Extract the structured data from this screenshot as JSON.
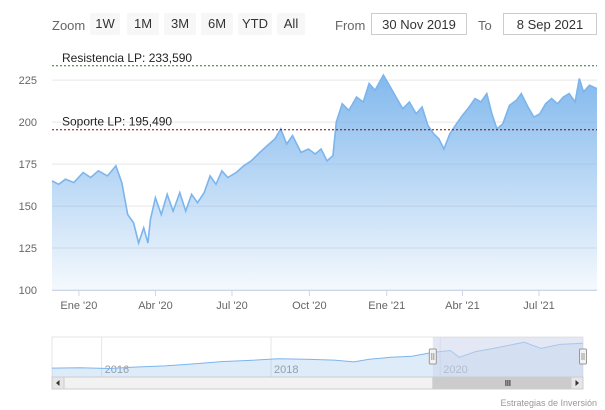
{
  "toolbar": {
    "zoom_label": "Zoom",
    "buttons": [
      "1W",
      "1M",
      "3M",
      "6M",
      "YTD",
      "All"
    ],
    "from_label": "From",
    "from_value": "30 Nov 2019",
    "to_label": "To",
    "to_value": "8 Sep 2021"
  },
  "credit": "Estrategias de Inversión",
  "colors": {
    "line": "#7cb5ec",
    "area_top": "#7cb5ec",
    "resistance": "#1f7a1f",
    "support": "#8b0000",
    "navigator_band": "#ccd6eb"
  },
  "chart_data": {
    "type": "area",
    "title": "",
    "xlabel": "",
    "ylabel": "",
    "ylim": [
      100,
      240
    ],
    "yticks": [
      100,
      125,
      150,
      175,
      200,
      225
    ],
    "xlim": [
      "2019-11-30",
      "2021-09-08"
    ],
    "xticks": [
      {
        "date": "2020-01-01",
        "label": "Ene '20"
      },
      {
        "date": "2020-04-01",
        "label": "Abr '20"
      },
      {
        "date": "2020-07-01",
        "label": "Jul '20"
      },
      {
        "date": "2020-10-01",
        "label": "Oct '20"
      },
      {
        "date": "2021-01-01",
        "label": "Ene '21"
      },
      {
        "date": "2021-04-01",
        "label": "Abr '21"
      },
      {
        "date": "2021-07-01",
        "label": "Jul '21"
      }
    ],
    "grid": true,
    "legend": "none",
    "series": [
      {
        "points": [
          [
            "2019-11-30",
            165
          ],
          [
            "2019-12-08",
            163
          ],
          [
            "2019-12-16",
            166
          ],
          [
            "2019-12-26",
            164
          ],
          [
            "2020-01-06",
            170
          ],
          [
            "2020-01-15",
            167
          ],
          [
            "2020-01-24",
            171
          ],
          [
            "2020-02-04",
            168
          ],
          [
            "2020-02-14",
            174
          ],
          [
            "2020-02-21",
            164
          ],
          [
            "2020-02-28",
            145
          ],
          [
            "2020-03-06",
            140
          ],
          [
            "2020-03-12",
            128
          ],
          [
            "2020-03-18",
            137
          ],
          [
            "2020-03-23",
            128
          ],
          [
            "2020-03-26",
            142
          ],
          [
            "2020-04-01",
            155
          ],
          [
            "2020-04-08",
            145
          ],
          [
            "2020-04-15",
            157
          ],
          [
            "2020-04-22",
            147
          ],
          [
            "2020-04-30",
            158
          ],
          [
            "2020-05-07",
            147
          ],
          [
            "2020-05-14",
            157
          ],
          [
            "2020-05-21",
            152
          ],
          [
            "2020-05-29",
            158
          ],
          [
            "2020-06-05",
            168
          ],
          [
            "2020-06-12",
            163
          ],
          [
            "2020-06-19",
            171
          ],
          [
            "2020-06-26",
            167
          ],
          [
            "2020-07-06",
            170
          ],
          [
            "2020-07-15",
            174
          ],
          [
            "2020-07-24",
            177
          ],
          [
            "2020-08-03",
            182
          ],
          [
            "2020-08-12",
            186
          ],
          [
            "2020-08-21",
            190
          ],
          [
            "2020-08-28",
            196
          ],
          [
            "2020-09-04",
            187
          ],
          [
            "2020-09-11",
            192
          ],
          [
            "2020-09-21",
            182
          ],
          [
            "2020-09-30",
            184
          ],
          [
            "2020-10-08",
            181
          ],
          [
            "2020-10-15",
            184
          ],
          [
            "2020-10-22",
            177
          ],
          [
            "2020-10-29",
            180
          ],
          [
            "2020-11-02",
            200
          ],
          [
            "2020-11-09",
            211
          ],
          [
            "2020-11-17",
            207
          ],
          [
            "2020-11-26",
            215
          ],
          [
            "2020-12-04",
            212
          ],
          [
            "2020-12-11",
            223
          ],
          [
            "2020-12-18",
            219
          ],
          [
            "2020-12-28",
            228
          ],
          [
            "2021-01-04",
            222
          ],
          [
            "2021-01-12",
            215
          ],
          [
            "2021-01-20",
            208
          ],
          [
            "2021-01-28",
            212
          ],
          [
            "2021-02-05",
            205
          ],
          [
            "2021-02-12",
            209
          ],
          [
            "2021-02-19",
            198
          ],
          [
            "2021-02-26",
            193
          ],
          [
            "2021-03-04",
            190
          ],
          [
            "2021-03-10",
            184
          ],
          [
            "2021-03-17",
            193
          ],
          [
            "2021-03-25",
            199
          ],
          [
            "2021-04-01",
            204
          ],
          [
            "2021-04-09",
            209
          ],
          [
            "2021-04-16",
            214
          ],
          [
            "2021-04-23",
            212
          ],
          [
            "2021-04-30",
            217
          ],
          [
            "2021-05-06",
            205
          ],
          [
            "2021-05-12",
            196
          ],
          [
            "2021-05-19",
            199
          ],
          [
            "2021-05-27",
            210
          ],
          [
            "2021-06-04",
            213
          ],
          [
            "2021-06-10",
            217
          ],
          [
            "2021-06-18",
            209
          ],
          [
            "2021-06-25",
            203
          ],
          [
            "2021-07-02",
            205
          ],
          [
            "2021-07-09",
            211
          ],
          [
            "2021-07-16",
            214
          ],
          [
            "2021-07-23",
            211
          ],
          [
            "2021-07-30",
            215
          ],
          [
            "2021-08-06",
            217
          ],
          [
            "2021-08-13",
            212
          ],
          [
            "2021-08-18",
            226
          ],
          [
            "2021-08-23",
            218
          ],
          [
            "2021-08-30",
            222
          ],
          [
            "2021-09-08",
            220
          ]
        ]
      }
    ],
    "annotations": [
      {
        "label": "Resistencia LP: 233,590",
        "value": 233.59,
        "style": "dotted",
        "color": "#1f7a1f"
      },
      {
        "label": "Soporte LP: 195,490",
        "value": 195.49,
        "style": "dotted",
        "color": "#8b0000"
      }
    ]
  },
  "navigator": {
    "xlim": [
      "2015-06-01",
      "2021-09-08"
    ],
    "ylim": [
      0,
      260
    ],
    "selected_range": [
      "2019-11-30",
      "2021-09-08"
    ],
    "year_labels": [
      {
        "date": "2016-01-01",
        "label": "2016"
      },
      {
        "date": "2018-01-01",
        "label": "2018"
      },
      {
        "date": "2020-01-01",
        "label": "2020"
      }
    ],
    "series": [
      [
        "2015-06-01",
        58
      ],
      [
        "2015-10-01",
        60
      ],
      [
        "2016-02-01",
        55
      ],
      [
        "2016-06-01",
        65
      ],
      [
        "2016-10-01",
        72
      ],
      [
        "2017-02-01",
        85
      ],
      [
        "2017-06-01",
        100
      ],
      [
        "2017-10-01",
        108
      ],
      [
        "2018-02-01",
        118
      ],
      [
        "2018-06-01",
        115
      ],
      [
        "2018-10-01",
        110
      ],
      [
        "2018-12-24",
        98
      ],
      [
        "2019-03-01",
        115
      ],
      [
        "2019-06-01",
        128
      ],
      [
        "2019-09-01",
        135
      ],
      [
        "2019-11-30",
        160
      ],
      [
        "2020-02-14",
        172
      ],
      [
        "2020-03-23",
        128
      ],
      [
        "2020-06-01",
        165
      ],
      [
        "2020-09-01",
        190
      ],
      [
        "2020-12-28",
        226
      ],
      [
        "2021-03-10",
        186
      ],
      [
        "2021-06-01",
        212
      ],
      [
        "2021-09-08",
        220
      ]
    ]
  }
}
